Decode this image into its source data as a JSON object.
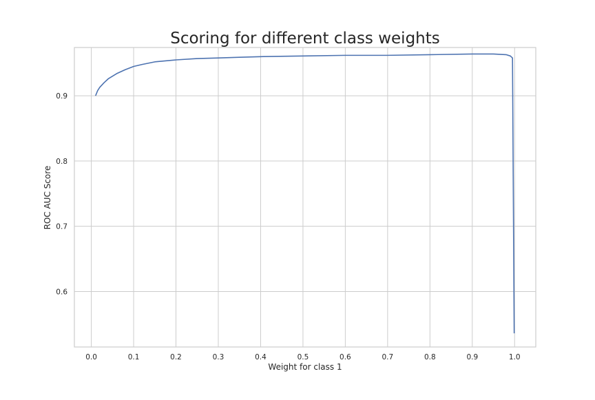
{
  "chart_data": {
    "type": "line",
    "title": "Scoring for different class weights",
    "xlabel": "Weight for class 1",
    "ylabel": "ROC AUC Score",
    "xlim": [
      -0.04,
      1.05
    ],
    "ylim": [
      0.515,
      0.974
    ],
    "xticks": [
      0.0,
      0.1,
      0.2,
      0.3,
      0.4,
      0.5,
      0.6,
      0.7,
      0.8,
      0.9,
      1.0
    ],
    "xtick_labels": [
      "0.0",
      "0.1",
      "0.2",
      "0.3",
      "0.4",
      "0.5",
      "0.6",
      "0.7",
      "0.8",
      "0.9",
      "1.0"
    ],
    "yticks": [
      0.6,
      0.7,
      0.8,
      0.9
    ],
    "ytick_labels": [
      "0.6",
      "0.7",
      "0.8",
      "0.9"
    ],
    "grid": true,
    "series": [
      {
        "color": "#4c72b0",
        "x": [
          0.01,
          0.015,
          0.02,
          0.03,
          0.04,
          0.05,
          0.06,
          0.08,
          0.1,
          0.12,
          0.15,
          0.2,
          0.25,
          0.3,
          0.35,
          0.4,
          0.5,
          0.6,
          0.7,
          0.8,
          0.9,
          0.95,
          0.98,
          0.99,
          0.995,
          0.999
        ],
        "y": [
          0.9,
          0.908,
          0.913,
          0.92,
          0.926,
          0.93,
          0.934,
          0.94,
          0.945,
          0.948,
          0.952,
          0.955,
          0.957,
          0.958,
          0.959,
          0.96,
          0.961,
          0.962,
          0.962,
          0.963,
          0.964,
          0.964,
          0.963,
          0.961,
          0.958,
          0.536
        ]
      }
    ]
  }
}
